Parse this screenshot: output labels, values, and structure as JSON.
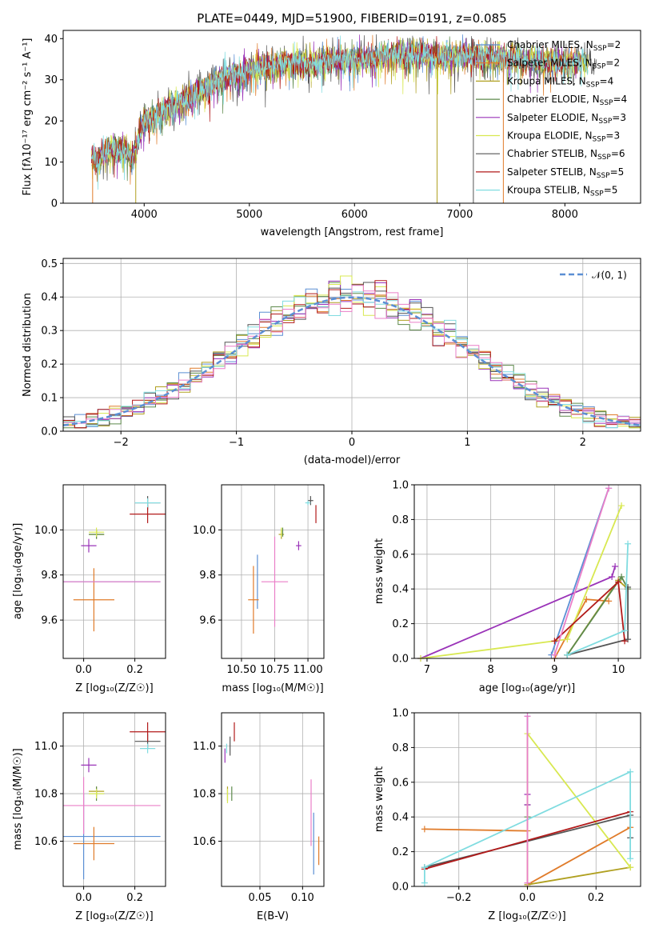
{
  "colors": [
    "#5b8fd4",
    "#e07b2a",
    "#b0a020",
    "#5e8a4c",
    "#9a33b8",
    "#d8e850",
    "#555555",
    "#b21a1a",
    "#80dce0",
    "#ea7fc8"
  ],
  "chart_data": [
    {
      "id": "spectrum",
      "type": "line",
      "title": "PLATE=0449, MJD=51900, FIBERID=0191, z=0.085",
      "xlabel": "wavelength [Angstrom, rest frame]",
      "ylabel": "Flux [fλ10⁻¹⁷ erg cm⁻² s⁻¹ A⁻¹]",
      "xlim": [
        3230,
        8720
      ],
      "ylim": [
        0,
        42
      ],
      "xticks": [
        4000,
        5000,
        6000,
        7000,
        8000
      ],
      "yticks": [
        0,
        10,
        20,
        30,
        40
      ],
      "grid": false,
      "legend_position": "top-right",
      "series": [
        {
          "name": "Chabrier MILES, N_SSP=2"
        },
        {
          "name": "Salpeter MILES, N_SSP=2"
        },
        {
          "name": "Kroupa MILES, N_SSP=4"
        },
        {
          "name": "Chabrier ELODIE, N_SSP=4"
        },
        {
          "name": "Salpeter ELODIE, N_SSP=3"
        },
        {
          "name": "Kroupa ELODIE, N_SSP=3"
        },
        {
          "name": "Chabrier STELIB, N_SSP=6"
        },
        {
          "name": "Salpeter STELIB, N_SSP=5"
        },
        {
          "name": "Kroupa STELIB, N_SSP=5"
        }
      ],
      "envelope": {
        "x": [
          3500,
          3550,
          3600,
          3700,
          3800,
          3900,
          3950,
          4000,
          4100,
          4200,
          4300,
          4400,
          4500,
          4600,
          4700,
          4800,
          4900,
          5000,
          5100,
          5200,
          5300,
          5400,
          5500,
          5600,
          5700,
          5800,
          5900,
          6000,
          6100,
          6200,
          6300,
          6400,
          6500,
          6600,
          6700,
          6800,
          6900,
          7000,
          7100,
          7200,
          7300,
          7400,
          7500,
          7600,
          7700,
          7800,
          7900,
          8000,
          8100,
          8200,
          8300
        ],
        "y": [
          11,
          10,
          12,
          13,
          13,
          11,
          16,
          20,
          21,
          23,
          24,
          25,
          27,
          28,
          30,
          31,
          31,
          32,
          33,
          33,
          34,
          34,
          34,
          34,
          34.5,
          35,
          35,
          35,
          35.5,
          35,
          36,
          36,
          35.5,
          36,
          36,
          35.5,
          35.5,
          36,
          36,
          35.5,
          35.5,
          35,
          35,
          35,
          34.5,
          34,
          34.5,
          34,
          34,
          34,
          34
        ]
      },
      "drops": [
        {
          "x": 3510,
          "series": 1
        },
        {
          "x": 3920,
          "series": 2
        },
        {
          "x": 6785,
          "series": 2
        },
        {
          "x": 7130,
          "series": 6
        },
        {
          "x": 7415,
          "series": 1
        }
      ]
    },
    {
      "id": "residuals",
      "type": "histogram",
      "xlabel": "(data-model)/error",
      "ylabel": "Normed distribution",
      "xlim": [
        -2.5,
        2.5
      ],
      "ylim": [
        0,
        0.515
      ],
      "xticks": [
        -2,
        -1,
        0,
        1,
        2
      ],
      "yticks": [
        0,
        0.1,
        0.2,
        0.3,
        0.4,
        0.5
      ],
      "grid": true,
      "legend_position": "top-right",
      "legend": "𝒩(0, 1)",
      "reference": {
        "type": "gaussian",
        "mean": 0,
        "sigma": 1
      },
      "bin_width": 0.1
    },
    {
      "id": "age_vs_Z",
      "type": "errorbar",
      "xlabel": "Z [log₁₀(Z/Z☉)]",
      "ylabel": "age  [log₁₀(age/yr)]",
      "xlim": [
        -0.08,
        0.32
      ],
      "ylim": [
        9.43,
        10.2
      ],
      "xticks": [
        0.0,
        0.2
      ],
      "yticks": [
        9.6,
        9.8,
        10.0
      ],
      "grid": true,
      "points": [
        {
          "series": 0,
          "x": 0.0,
          "y": 9.77,
          "xerr": 0.3,
          "yerr": 0.0
        },
        {
          "series": 1,
          "x": 0.04,
          "y": 9.69,
          "xerr": 0.08,
          "yerr": 0.14
        },
        {
          "series": 2,
          "x": 0.05,
          "y": 9.98,
          "xerr": 0.03,
          "yerr": 0.02
        },
        {
          "series": 3,
          "x": 0.05,
          "y": 9.98,
          "xerr": 0.03,
          "yerr": 0.02
        },
        {
          "series": 4,
          "x": 0.02,
          "y": 9.93,
          "xerr": 0.03,
          "yerr": 0.03
        },
        {
          "series": 5,
          "x": 0.05,
          "y": 9.99,
          "xerr": 0.03,
          "yerr": 0.02
        },
        {
          "series": 6,
          "x": 0.25,
          "y": 10.12,
          "xerr": 0.05,
          "yerr": 0.03
        },
        {
          "series": 7,
          "x": 0.25,
          "y": 10.07,
          "xerr": 0.07,
          "yerr": 0.04
        },
        {
          "series": 8,
          "x": 0.25,
          "y": 10.12,
          "xerr": 0.05,
          "yerr": 0.02
        },
        {
          "series": 9,
          "x": 0.0,
          "y": 9.77,
          "xerr": 0.3,
          "yerr": 0.0
        }
      ]
    },
    {
      "id": "age_vs_mass",
      "type": "errorbar",
      "xlabel": "mass [log₁₀(M/M☉)]",
      "ylabel": "",
      "xlim": [
        10.35,
        11.12
      ],
      "ylim": [
        9.43,
        10.2
      ],
      "xticks": [
        10.5,
        10.75,
        11.0
      ],
      "yticks": [
        9.6,
        9.8,
        10.0
      ],
      "grid": true,
      "points": [
        {
          "series": 0,
          "x": 10.62,
          "y": 9.77,
          "xerr": 0.0,
          "yerr": 0.12
        },
        {
          "series": 1,
          "x": 10.59,
          "y": 9.69,
          "xerr": 0.04,
          "yerr": 0.15
        },
        {
          "series": 2,
          "x": 10.8,
          "y": 9.98,
          "xerr": 0.02,
          "yerr": 0.02
        },
        {
          "series": 3,
          "x": 10.81,
          "y": 9.99,
          "xerr": 0.0,
          "yerr": 0.02
        },
        {
          "series": 4,
          "x": 10.93,
          "y": 9.93,
          "xerr": 0.02,
          "yerr": 0.02
        },
        {
          "series": 5,
          "x": 10.8,
          "y": 9.99,
          "xerr": 0.0,
          "yerr": 0.02
        },
        {
          "series": 6,
          "x": 11.02,
          "y": 10.13,
          "xerr": 0.02,
          "yerr": 0.02
        },
        {
          "series": 7,
          "x": 11.06,
          "y": 10.07,
          "xerr": 0.0,
          "yerr": 0.04
        },
        {
          "series": 8,
          "x": 11.0,
          "y": 10.12,
          "xerr": 0.02,
          "yerr": 0.01
        },
        {
          "series": 9,
          "x": 10.75,
          "y": 9.77,
          "xerr": 0.1,
          "yerr": 0.2
        }
      ]
    },
    {
      "id": "mass_weight_vs_age",
      "type": "line",
      "xlabel": "age  [log₁₀(age/yr)]",
      "ylabel": "mass weight",
      "xlim": [
        6.8,
        10.35
      ],
      "ylim": [
        0,
        1.0
      ],
      "xticks": [
        7,
        8,
        9,
        10
      ],
      "yticks": [
        0.0,
        0.2,
        0.4,
        0.6,
        0.8,
        1.0
      ],
      "grid": true,
      "series": [
        {
          "color_index": 0,
          "points": [
            [
              8.95,
              0.02
            ],
            [
              9.85,
              0.98
            ]
          ]
        },
        {
          "color_index": 1,
          "points": [
            [
              9.0,
              0.0
            ],
            [
              9.5,
              0.34
            ],
            [
              9.85,
              0.33
            ]
          ]
        },
        {
          "color_index": 2,
          "points": [
            [
              9.2,
              0.02
            ],
            [
              10.0,
              0.45
            ],
            [
              10.15,
              0.4
            ]
          ]
        },
        {
          "color_index": 3,
          "points": [
            [
              9.2,
              0.02
            ],
            [
              10.05,
              0.47
            ],
            [
              10.15,
              0.4
            ]
          ]
        },
        {
          "color_index": 4,
          "points": [
            [
              6.9,
              0.0
            ],
            [
              9.9,
              0.47
            ],
            [
              9.95,
              0.53
            ]
          ]
        },
        {
          "color_index": 5,
          "points": [
            [
              6.9,
              0.0
            ],
            [
              9.2,
              0.11
            ],
            [
              10.05,
              0.88
            ]
          ]
        },
        {
          "color_index": 6,
          "points": [
            [
              9.2,
              0.02
            ],
            [
              10.15,
              0.11
            ],
            [
              10.15,
              0.41
            ]
          ]
        },
        {
          "color_index": 7,
          "points": [
            [
              9.0,
              0.1
            ],
            [
              10.0,
              0.44
            ],
            [
              10.1,
              0.1
            ]
          ]
        },
        {
          "color_index": 8,
          "points": [
            [
              9.2,
              0.02
            ],
            [
              10.1,
              0.16
            ],
            [
              10.15,
              0.66
            ]
          ]
        },
        {
          "color_index": 9,
          "points": [
            [
              9.0,
              0.02
            ],
            [
              9.85,
              0.98
            ]
          ]
        }
      ]
    },
    {
      "id": "mass_vs_Z",
      "type": "errorbar",
      "xlabel": "Z [log₁₀(Z/Z☉)]",
      "ylabel": "mass [log₁₀(M/M☉)]",
      "xlim": [
        -0.08,
        0.32
      ],
      "ylim": [
        10.41,
        11.14
      ],
      "xticks": [
        0.0,
        0.2
      ],
      "yticks": [
        10.6,
        10.8,
        11.0
      ],
      "grid": true,
      "points": [
        {
          "series": 0,
          "x": 0.0,
          "y": 10.62,
          "xerr": 0.3,
          "yerr": 0.18
        },
        {
          "series": 1,
          "x": 0.04,
          "y": 10.59,
          "xerr": 0.08,
          "yerr": 0.07
        },
        {
          "series": 2,
          "x": 0.05,
          "y": 10.81,
          "xerr": 0.03,
          "yerr": 0.02
        },
        {
          "series": 3,
          "x": 0.05,
          "y": 10.8,
          "xerr": 0.03,
          "yerr": 0.03
        },
        {
          "series": 4,
          "x": 0.02,
          "y": 10.92,
          "xerr": 0.03,
          "yerr": 0.03
        },
        {
          "series": 5,
          "x": 0.05,
          "y": 10.8,
          "xerr": 0.03,
          "yerr": 0.02
        },
        {
          "series": 6,
          "x": 0.25,
          "y": 11.02,
          "xerr": 0.05,
          "yerr": 0.03
        },
        {
          "series": 7,
          "x": 0.25,
          "y": 11.06,
          "xerr": 0.07,
          "yerr": 0.04
        },
        {
          "series": 8,
          "x": 0.25,
          "y": 10.99,
          "xerr": 0.03,
          "yerr": 0.02
        },
        {
          "series": 9,
          "x": 0.0,
          "y": 10.75,
          "xerr": 0.3,
          "yerr": 0.12
        }
      ]
    },
    {
      "id": "mass_vs_ebv",
      "type": "errorbar",
      "xlabel": "E(B-V)",
      "ylabel": "",
      "xlim": [
        0.005,
        0.125
      ],
      "ylim": [
        10.41,
        11.14
      ],
      "xticks": [
        0.05,
        0.1
      ],
      "yticks": [
        10.6,
        10.8,
        11.0
      ],
      "grid": true,
      "points": [
        {
          "series": 0,
          "x": 0.113,
          "y": 10.59,
          "xerr": 0.0,
          "yerr": 0.13
        },
        {
          "series": 1,
          "x": 0.119,
          "y": 10.56,
          "xerr": 0.0,
          "yerr": 0.06
        },
        {
          "series": 2,
          "x": 0.012,
          "y": 10.8,
          "xerr": 0.0,
          "yerr": 0.03
        },
        {
          "series": 3,
          "x": 0.017,
          "y": 10.8,
          "xerr": 0.0,
          "yerr": 0.03
        },
        {
          "series": 4,
          "x": 0.009,
          "y": 10.96,
          "xerr": 0.0,
          "yerr": 0.03
        },
        {
          "series": 5,
          "x": 0.012,
          "y": 10.79,
          "xerr": 0.0,
          "yerr": 0.03
        },
        {
          "series": 6,
          "x": 0.015,
          "y": 11.0,
          "xerr": 0.0,
          "yerr": 0.04
        },
        {
          "series": 7,
          "x": 0.02,
          "y": 11.06,
          "xerr": 0.0,
          "yerr": 0.04
        },
        {
          "series": 8,
          "x": 0.011,
          "y": 10.99,
          "xerr": 0.0,
          "yerr": 0.02
        },
        {
          "series": 9,
          "x": 0.11,
          "y": 10.72,
          "xerr": 0.0,
          "yerr": 0.14
        }
      ]
    },
    {
      "id": "mass_weight_vs_Z",
      "type": "line",
      "xlabel": "Z [log₁₀(Z/Z☉)]",
      "ylabel": "mass weight",
      "xlim": [
        -0.33,
        0.33
      ],
      "ylim": [
        0,
        1.0
      ],
      "xticks": [
        -0.2,
        0.0,
        0.2
      ],
      "yticks": [
        0.0,
        0.2,
        0.4,
        0.6,
        0.8,
        1.0
      ],
      "grid": true,
      "series": [
        {
          "color_index": 0,
          "points": [
            [
              0.0,
              0.02
            ],
            [
              0.0,
              0.98
            ]
          ]
        },
        {
          "color_index": 1,
          "points": [
            [
              -0.3,
              0.33
            ],
            [
              0.0,
              0.32
            ],
            [
              0.0,
              0.01
            ],
            [
              0.3,
              0.34
            ]
          ]
        },
        {
          "color_index": 2,
          "points": [
            [
              0.0,
              0.01
            ],
            [
              0.3,
              0.11
            ]
          ]
        },
        {
          "color_index": 3,
          "points": [
            [
              0.0,
              0.4
            ],
            [
              0.0,
              0.47
            ]
          ]
        },
        {
          "color_index": 4,
          "points": [
            [
              0.0,
              0.47
            ],
            [
              0.0,
              0.53
            ]
          ]
        },
        {
          "color_index": 5,
          "points": [
            [
              0.0,
              0.0
            ],
            [
              0.0,
              0.88
            ],
            [
              0.3,
              0.11
            ]
          ]
        },
        {
          "color_index": 6,
          "points": [
            [
              -0.3,
              0.11
            ],
            [
              0.3,
              0.41
            ],
            [
              0.3,
              0.28
            ]
          ]
        },
        {
          "color_index": 7,
          "points": [
            [
              -0.3,
              0.1
            ],
            [
              0.3,
              0.43
            ]
          ]
        },
        {
          "color_index": 8,
          "points": [
            [
              -0.3,
              0.02
            ],
            [
              -0.3,
              0.11
            ],
            [
              0.3,
              0.66
            ],
            [
              0.3,
              0.16
            ]
          ]
        },
        {
          "color_index": 9,
          "points": [
            [
              0.0,
              0.02
            ],
            [
              0.0,
              0.98
            ]
          ]
        }
      ]
    }
  ]
}
